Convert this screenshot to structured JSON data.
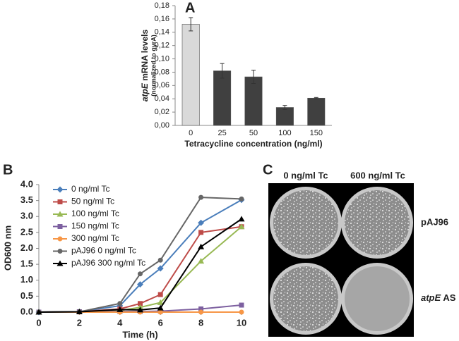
{
  "chart_data": [
    {
      "type": "bar",
      "label": "A",
      "categories": [
        "0",
        "25",
        "50",
        "100",
        "150"
      ],
      "values": [
        0.152,
        0.082,
        0.073,
        0.027,
        0.041
      ],
      "errors": [
        0.01,
        0.011,
        0.01,
        0.003,
        0.001
      ],
      "colors": [
        "#d9d9d9",
        "#404040",
        "#404040",
        "#404040",
        "#404040"
      ],
      "ylim": [
        0,
        0.18
      ],
      "yticks": [
        {
          "value": 0,
          "label": "0,00"
        },
        {
          "value": 0.02,
          "label": "0,02"
        },
        {
          "value": 0.04,
          "label": "0,04"
        },
        {
          "value": 0.06,
          "label": "0,06"
        },
        {
          "value": 0.08,
          "label": "0,08"
        },
        {
          "value": 0.1,
          "label": "0,10"
        },
        {
          "value": 0.12,
          "label": "0,12"
        },
        {
          "value": 0.14,
          "label": "0,14"
        },
        {
          "value": 0.16,
          "label": "0,16"
        },
        {
          "value": 0.18,
          "label": "0,18"
        }
      ],
      "ylabel": {
        "italic": "atpE",
        "text": "mRNA levels",
        "note": "(normalized to gyrA)"
      },
      "xlabel": "Tetracycline concentration (ng/ml)"
    },
    {
      "type": "line",
      "label": "B",
      "x": [
        0,
        2,
        4,
        5,
        6,
        8,
        10
      ],
      "series": [
        {
          "name": "0 ng/ml Tc",
          "color": "#4a7ebb",
          "marker": "diamond",
          "values": [
            0,
            0.01,
            0.2,
            0.87,
            1.37,
            2.8,
            3.52
          ]
        },
        {
          "name": "50 ng/ml Tc",
          "color": "#be4b48",
          "marker": "square",
          "values": [
            0,
            0.01,
            0.1,
            0.27,
            0.55,
            2.5,
            2.68
          ]
        },
        {
          "name": "100 ng/ml Tc",
          "color": "#98b954",
          "marker": "triangle",
          "values": [
            0,
            0.01,
            0.05,
            0.15,
            0.3,
            1.6,
            2.68
          ]
        },
        {
          "name": "150 ng/ml Tc",
          "color": "#7d60a0",
          "marker": "square",
          "values": [
            0,
            0.01,
            0.02,
            0.02,
            0.03,
            0.1,
            0.22
          ]
        },
        {
          "name": "300 ng/ml Tc",
          "color": "#f79646",
          "marker": "circle",
          "values": [
            0,
            0,
            0,
            0,
            0,
            0,
            0
          ]
        },
        {
          "name": "pAJ96 0 ng/ml Tc",
          "color": "#666666",
          "marker": "circle",
          "values": [
            0,
            0.01,
            0.27,
            1.2,
            1.63,
            3.6,
            3.55
          ]
        },
        {
          "name": "pAJ96 300 ng/ml Tc",
          "color": "#000000",
          "marker": "triangle",
          "values": [
            0,
            0.01,
            0.08,
            0.07,
            0.13,
            2.05,
            2.92
          ]
        }
      ],
      "xlim": [
        0,
        10
      ],
      "xticks": [
        0,
        2,
        4,
        6,
        8,
        10
      ],
      "ylim": [
        0,
        4
      ],
      "yticks": [
        {
          "value": 0,
          "label": "0.0"
        },
        0.5,
        {
          "value": 1,
          "label": "1.0"
        },
        1.5,
        {
          "value": 2,
          "label": "2.0"
        },
        2.5,
        {
          "value": 3,
          "label": "3.0"
        },
        3.5,
        {
          "value": 4,
          "label": "4.0"
        }
      ],
      "xlabel": "Time (h)",
      "ylabel": "OD600 nm",
      "legend": "upper left"
    }
  ],
  "panel_c": {
    "label": "C",
    "columns": [
      "0 ng/ml Tc",
      "600 ng/ml Tc"
    ],
    "rows": [
      {
        "text": "pAJ96"
      },
      {
        "italic": "atpE",
        "text": "AS"
      }
    ]
  }
}
